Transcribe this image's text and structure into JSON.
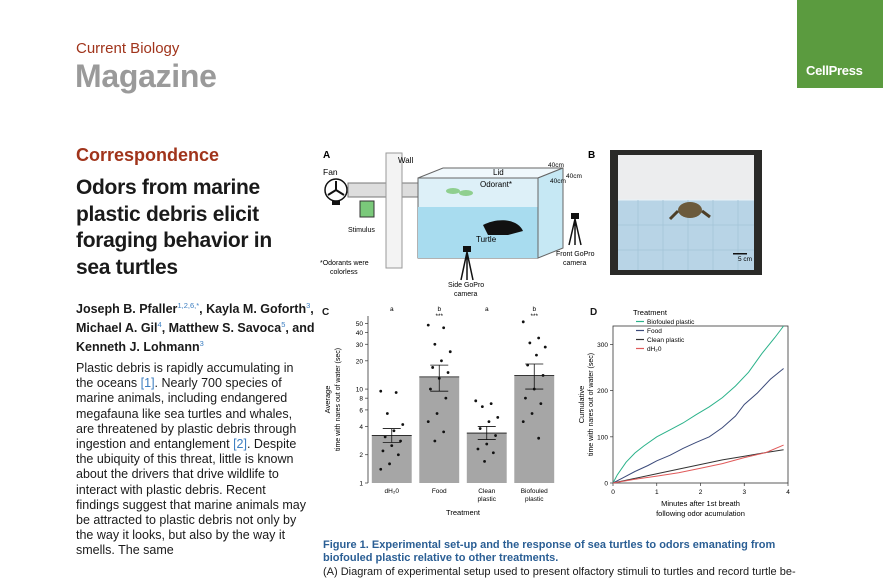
{
  "header": {
    "journal": "Current Biology",
    "section": "Magazine",
    "publisher": "CellPress"
  },
  "article": {
    "category": "Correspondence",
    "title": "Odors from marine plastic debris elicit foraging behavior in sea turtles",
    "authors": [
      {
        "name": "Joseph B. Pfaller",
        "sup": "1,2,6,*"
      },
      {
        "name": "Kayla M. Goforth",
        "sup": "3"
      },
      {
        "name": "Michael A. Gil",
        "sup": "4"
      },
      {
        "name": "Matthew S. Savoca",
        "sup": "5"
      },
      {
        "name": "Kenneth J. Lohmann",
        "sup": "3"
      }
    ],
    "body": {
      "p1": "Plastic debris is rapidly accumulating in the oceans ",
      "ref1": "[1]",
      "p2": ". Nearly 700 species of marine animals, including endangered megafauna like sea turtles and whales, are threatened by plastic debris through ingestion and entanglement ",
      "ref2": "[2]",
      "p3": ". Despite the ubiquity of this threat, little is known about the drivers that drive wildlife to interact with plastic debris. Recent findings suggest that marine animals may be attracted to plastic debris not only by the way it looks, but also by the way it smells. The same"
    }
  },
  "figure": {
    "panel_a": {
      "label": "A",
      "fan": "Fan",
      "wall": "Wall",
      "stimulus": "Stimulus",
      "lid": "Lid",
      "odorant": "Odorant*",
      "turtle": "Turtle",
      "dim1": "40cm",
      "dim2": "40cm",
      "dim3": "40cm",
      "odorant_note": "*Odorants were colorless",
      "front_cam": "Front GoPro camera",
      "side_cam": "Side GoPro camera"
    },
    "panel_b": {
      "label": "B",
      "scale": "5 cm"
    },
    "panel_c": {
      "label": "C",
      "ylabel1": "Average",
      "ylabel2": "time with nares out of water (sec)",
      "xlabel": "Treatment",
      "letters": [
        "a",
        "b",
        "a",
        "b"
      ],
      "stars": [
        "",
        "***",
        "",
        "***"
      ]
    },
    "panel_d": {
      "label": "D",
      "legend_title": "Treatment",
      "ylabel1": "Cumulative",
      "ylabel2": "time with nares out of water (sec)",
      "xlabel1": "Minutes after 1st breath",
      "xlabel2": "following odor acumulation"
    },
    "caption_title": "Figure 1. Experimental set-up and the response of sea turtles to odors emanating from biofouled plastic relative to other treatments.",
    "caption_body": "(A) Diagram of experimental setup used to present olfactory stimuli to turtles and record turtle be-"
  },
  "chart_data": [
    {
      "type": "bar",
      "title": "",
      "categories": [
        "dH2O",
        "Food",
        "Clean plastic",
        "Biofouled plastic"
      ],
      "category_labels": [
        "dH₂0",
        "Food",
        "Clean plastic",
        "Biofouled plastic"
      ],
      "values": [
        3.2,
        13.5,
        3.4,
        14.0
      ],
      "error_upper": [
        3.8,
        18.0,
        4.0,
        18.5
      ],
      "error_lower": [
        2.7,
        9.5,
        2.9,
        10.0
      ],
      "yscale": "log",
      "ylim": [
        1,
        60
      ],
      "yticks": [
        1,
        2,
        4,
        6,
        8,
        10,
        20,
        30,
        40,
        50
      ],
      "ylabel": "Average time with nares out of water (sec)",
      "xlabel": "Treatment",
      "points": [
        [
          9.5,
          9.2,
          5.5,
          4.2,
          3.6,
          3.1,
          2.8,
          2.5,
          2.2,
          2.0,
          1.6,
          1.4
        ],
        [
          48,
          45,
          30,
          25,
          20,
          17,
          15,
          13,
          10,
          8,
          5.5,
          4.5,
          3.5,
          2.8
        ],
        [
          7.5,
          7.0,
          6.5,
          5.0,
          4.5,
          3.8,
          3.2,
          2.6,
          2.3,
          2.1,
          1.7
        ],
        [
          52,
          35,
          31,
          28,
          23,
          18,
          14,
          10,
          8,
          7,
          5.5,
          4.5,
          3.0
        ]
      ]
    },
    {
      "type": "line",
      "x_range": [
        0,
        4
      ],
      "xticks": [
        0,
        1,
        2,
        3,
        4
      ],
      "yticks": [
        0,
        100,
        200,
        300
      ],
      "ylim": [
        0,
        340
      ],
      "xlabel": "Minutes after 1st breath following odor acumulation",
      "ylabel": "Cumulative time with nares out of water (sec)",
      "legend_title": "Treatment",
      "series": [
        {
          "name": "Biofouled plastic",
          "color": "#2bb28a",
          "x": [
            0,
            0.1,
            0.3,
            0.5,
            0.7,
            1.0,
            1.3,
            1.6,
            1.9,
            2.2,
            2.5,
            2.8,
            3.1,
            3.4,
            3.7,
            3.9
          ],
          "y": [
            0,
            18,
            45,
            65,
            80,
            100,
            115,
            130,
            148,
            165,
            185,
            210,
            240,
            280,
            315,
            340
          ]
        },
        {
          "name": "Food",
          "color": "#3b4a7a",
          "x": [
            0,
            0.2,
            0.5,
            0.8,
            1.0,
            1.3,
            1.6,
            1.9,
            2.2,
            2.5,
            2.8,
            3.0,
            3.3,
            3.6,
            3.9
          ],
          "y": [
            0,
            10,
            25,
            38,
            48,
            60,
            75,
            88,
            100,
            120,
            145,
            170,
            195,
            225,
            248
          ]
        },
        {
          "name": "Clean plastic",
          "color": "#333333",
          "x": [
            0,
            0.5,
            1.0,
            1.5,
            2.0,
            2.5,
            3.0,
            3.5,
            3.9
          ],
          "y": [
            0,
            10,
            20,
            30,
            40,
            50,
            58,
            66,
            72
          ]
        },
        {
          "name": "dH₂0",
          "color": "#e05a5a",
          "x": [
            0,
            0.5,
            1.0,
            1.5,
            2.0,
            2.5,
            3.0,
            3.5,
            3.9
          ],
          "y": [
            0,
            8,
            15,
            22,
            32,
            42,
            55,
            66,
            82
          ]
        }
      ]
    }
  ]
}
